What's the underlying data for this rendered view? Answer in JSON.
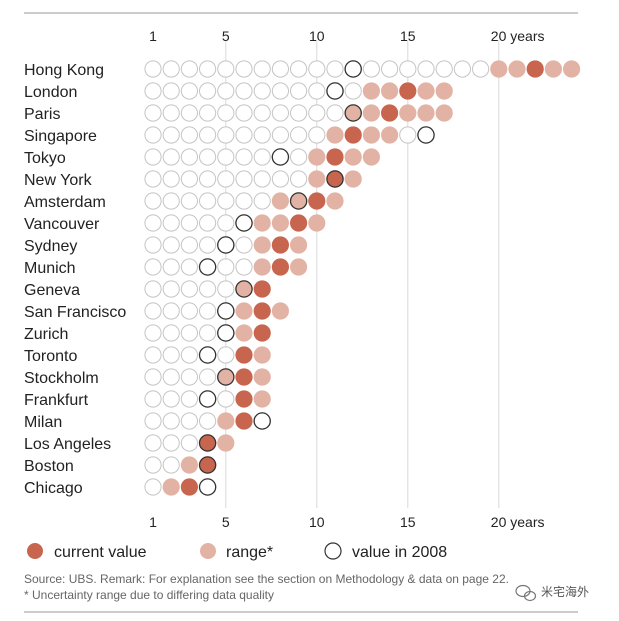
{
  "chart_data": {
    "type": "dot-range",
    "x_ticks": [
      {
        "value": 1,
        "label": "1"
      },
      {
        "value": 5,
        "label": "5"
      },
      {
        "value": 10,
        "label": "10"
      },
      {
        "value": 15,
        "label": "15"
      },
      {
        "value": 20,
        "label": "20 years"
      }
    ],
    "xlim": [
      1,
      24
    ],
    "grid": true,
    "cities": [
      {
        "name": "Hong Kong",
        "current": 22,
        "range": [
          20,
          24
        ],
        "y2008": 12
      },
      {
        "name": "London",
        "current": 15,
        "range": [
          13,
          17
        ],
        "y2008": 11
      },
      {
        "name": "Paris",
        "current": 14,
        "range": [
          12,
          17
        ],
        "y2008": 12
      },
      {
        "name": "Singapore",
        "current": 12,
        "range": [
          11,
          14
        ],
        "y2008": 16
      },
      {
        "name": "Tokyo",
        "current": 11,
        "range": [
          10,
          13
        ],
        "y2008": 8
      },
      {
        "name": "New York",
        "current": 11,
        "range": [
          10,
          12
        ],
        "y2008": 11
      },
      {
        "name": "Amsterdam",
        "current": 10,
        "range": [
          8,
          11
        ],
        "y2008": 9
      },
      {
        "name": "Vancouver",
        "current": 9,
        "range": [
          7,
          10
        ],
        "y2008": 6
      },
      {
        "name": "Sydney",
        "current": 8,
        "range": [
          7,
          9
        ],
        "y2008": 5
      },
      {
        "name": "Munich",
        "current": 8,
        "range": [
          7,
          9
        ],
        "y2008": 4
      },
      {
        "name": "Geneva",
        "current": 7,
        "range": [
          6,
          7
        ],
        "y2008": 6
      },
      {
        "name": "San Francisco",
        "current": 7,
        "range": [
          6,
          8
        ],
        "y2008": 5
      },
      {
        "name": "Zurich",
        "current": 7,
        "range": [
          6,
          7
        ],
        "y2008": 5
      },
      {
        "name": "Toronto",
        "current": 6,
        "range": [
          6,
          7
        ],
        "y2008": 4
      },
      {
        "name": "Stockholm",
        "current": 6,
        "range": [
          5,
          7
        ],
        "y2008": 5
      },
      {
        "name": "Frankfurt",
        "current": 6,
        "range": [
          6,
          7
        ],
        "y2008": 4
      },
      {
        "name": "Milan",
        "current": 6,
        "range": [
          5,
          6
        ],
        "y2008": 7
      },
      {
        "name": "Los Angeles",
        "current": 4,
        "range": [
          4,
          5
        ],
        "y2008": 4
      },
      {
        "name": "Boston",
        "current": 4,
        "range": [
          3,
          4
        ],
        "y2008": 4
      },
      {
        "name": "Chicago",
        "current": 3,
        "range": [
          2,
          3
        ],
        "y2008": 4
      }
    ],
    "legend": {
      "current": "current value",
      "range": "range*",
      "y2008": "value in 2008"
    },
    "colors": {
      "current": "#c8654e",
      "range": "#e2b3a4",
      "empty_stroke": "#c4c4c4",
      "marker_stroke": "#333333",
      "grid": "#d9d9d9",
      "rule": "#9a9a9a"
    }
  },
  "footer": {
    "source": "Source: UBS. Remark: For explanation see the section on Methodology & data on page 22.",
    "note": "* Uncertainty range due to differing data quality"
  },
  "watermark": {
    "text": "米宅海外"
  }
}
